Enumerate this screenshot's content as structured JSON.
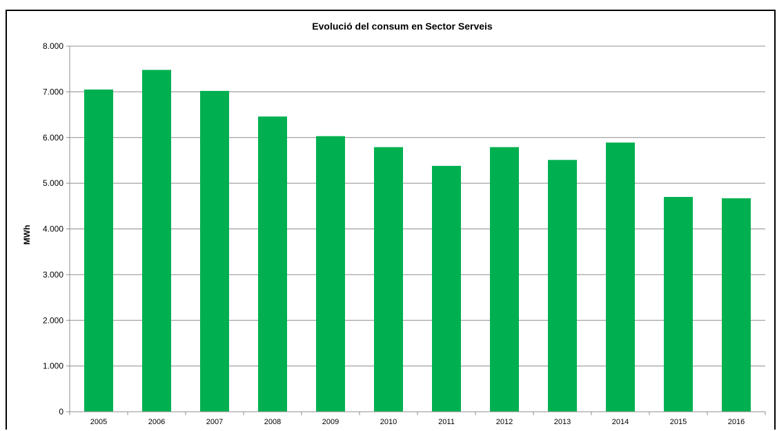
{
  "chart_data": {
    "type": "bar",
    "title": "Evolució del consum en Sector Serveis",
    "xlabel": "",
    "ylabel": "MWh",
    "categories": [
      "2005",
      "2006",
      "2007",
      "2008",
      "2009",
      "2010",
      "2011",
      "2012",
      "2013",
      "2014",
      "2015",
      "2016"
    ],
    "values": [
      7050,
      7480,
      7020,
      6460,
      6030,
      5790,
      5380,
      5790,
      5510,
      5890,
      4700,
      4670
    ],
    "ylim": [
      0,
      8000
    ],
    "yticks": [
      0,
      1000,
      2000,
      3000,
      4000,
      5000,
      6000,
      7000,
      8000
    ],
    "ytick_labels": [
      "0",
      "1.000",
      "2.000",
      "3.000",
      "4.000",
      "5.000",
      "6.000",
      "7.000",
      "8.000"
    ],
    "grid": true,
    "legend": "none",
    "bar_color": "#00B050"
  }
}
